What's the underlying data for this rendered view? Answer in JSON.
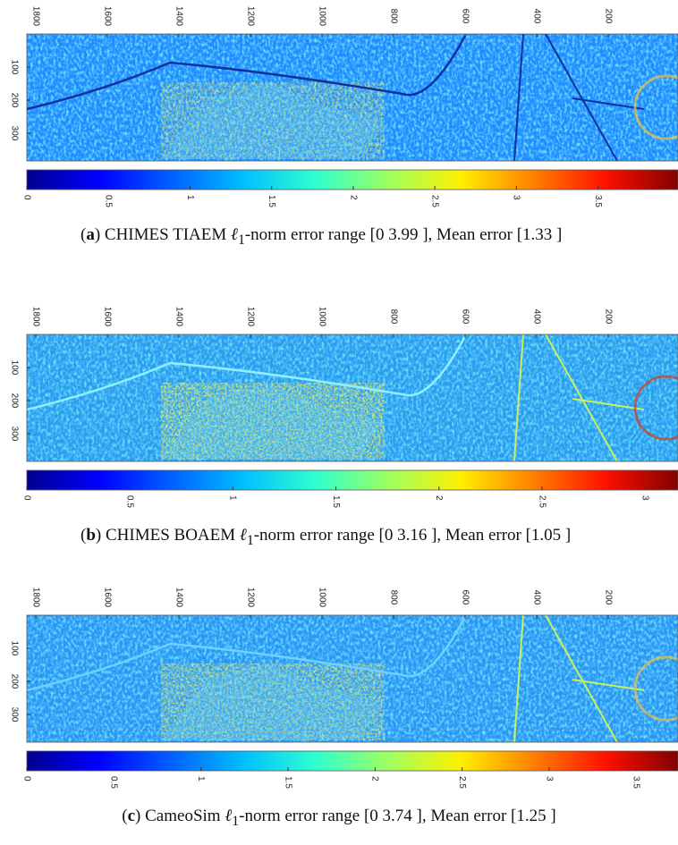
{
  "panels": [
    {
      "x_ticks": [
        1800,
        1600,
        1400,
        1200,
        1000,
        800,
        600,
        400,
        200
      ],
      "y_ticks": [
        100,
        200,
        300
      ],
      "colorbar": {
        "max": 3.99,
        "ticks": [
          0,
          0.5,
          1,
          1.5,
          2,
          2.5,
          3,
          3.5
        ]
      },
      "caption": {
        "label": "a",
        "before": "CHIMES TIAEM ",
        "symbol": "ℓ",
        "subscript": "1",
        "after": "-norm error range [0 3.99 ], Mean error [1.33 ]"
      }
    },
    {
      "x_ticks": [
        1800,
        1600,
        1400,
        1200,
        1000,
        800,
        600,
        400,
        200
      ],
      "y_ticks": [
        100,
        200,
        300
      ],
      "colorbar": {
        "max": 3.16,
        "ticks": [
          0,
          0.5,
          1,
          1.5,
          2,
          2.5,
          3
        ]
      },
      "caption": {
        "label": "b",
        "before": "CHIMES BOAEM ",
        "symbol": "ℓ",
        "subscript": "1",
        "after": "-norm error range [0 3.16 ], Mean error [1.05 ]"
      }
    },
    {
      "x_ticks": [
        1800,
        1600,
        1400,
        1200,
        1000,
        800,
        600,
        400,
        200
      ],
      "y_ticks": [
        100,
        200,
        300
      ],
      "colorbar": {
        "max": 3.74,
        "ticks": [
          0,
          0.5,
          1,
          1.5,
          2,
          2.5,
          3,
          3.5
        ]
      },
      "caption": {
        "label": "c",
        "before": "CameoSim ",
        "symbol": "ℓ",
        "subscript": "1",
        "after": "-norm error range [0 3.74 ], Mean error [1.25 ]"
      }
    }
  ]
}
